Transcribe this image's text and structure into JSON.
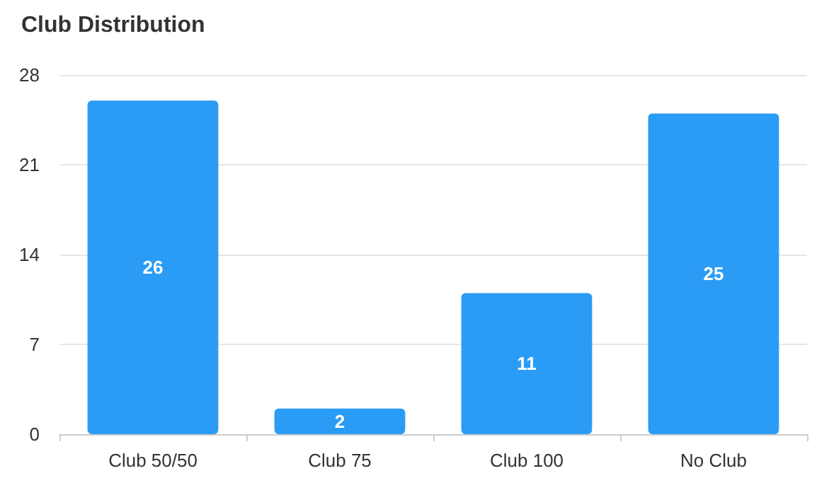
{
  "chart_data": {
    "type": "bar",
    "title": "Club Distribution",
    "categories": [
      "Club 50/50",
      "Club 75",
      "Club 100",
      "No Club"
    ],
    "values": [
      26,
      2,
      11,
      25
    ],
    "color": "#2a9cf5",
    "ylim": [
      0,
      28
    ],
    "yticks": [
      0,
      7,
      14,
      21,
      28
    ],
    "grid": "y",
    "data_labels": true
  }
}
